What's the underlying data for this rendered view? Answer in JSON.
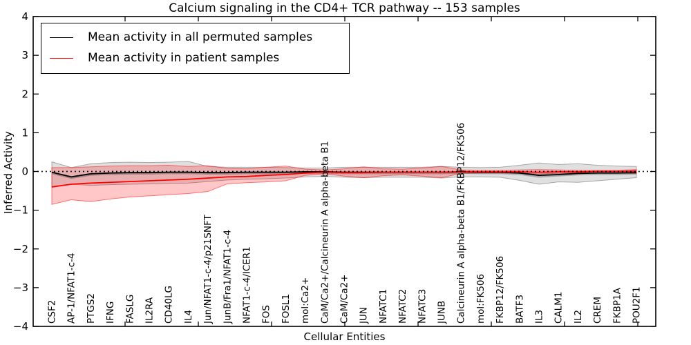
{
  "figure": {
    "title": "Calcium signaling in the CD4+ TCR pathway -- 153 samples",
    "xlabel": "Cellular Entities",
    "ylabel": "Inferred Activity"
  },
  "legend": {
    "items": [
      {
        "label": "Mean activity in all permuted samples",
        "color": "#000000"
      },
      {
        "label": "Mean activity in patient samples",
        "color": "#ff0000"
      }
    ]
  },
  "chart_data": {
    "type": "line",
    "title": "Calcium signaling in the CD4+ TCR pathway -- 153 samples",
    "xlabel": "Cellular Entities",
    "ylabel": "Inferred Activity",
    "ylim": [
      -4,
      4
    ],
    "ytick_labels": [
      "4",
      "3",
      "2",
      "1",
      "0",
      "−1",
      "−2",
      "−3",
      "−4"
    ],
    "ytick_values": [
      4,
      3,
      2,
      1,
      0,
      -1,
      -2,
      -3,
      -4
    ],
    "grid": false,
    "legend_position": "upper left",
    "zero_reference_line": {
      "y": 0,
      "style": "dotted",
      "color": "#000000"
    },
    "categories": [
      "CSF2",
      "AP-1/NFAT1-c-4",
      "PTGS2",
      "IFNG",
      "FASLG",
      "IL2RA",
      "CD40LG",
      "IL4",
      "Jun/NFAT1-c-4/p21SNFT",
      "JunB/Fra1/NFAT1-c-4",
      "NFAT1-c-4/ICER1",
      "FOS",
      "FOSL1",
      "mol:Ca2+",
      "CaM/Ca2+/Calcineurin A alpha-beta B1",
      "CaM/Ca2+",
      "JUN",
      "NFATC1",
      "NFATC2",
      "NFATC3",
      "JUNB",
      "Calcineurin A alpha-beta B1/FKBP12/FK506",
      "mol:FK506",
      "FKBP12/FK506",
      "BATF3",
      "IL3",
      "CALM1",
      "IL2",
      "CREM",
      "FKBP1A",
      "POU2F1"
    ],
    "series": [
      {
        "name": "Mean activity in all permuted samples",
        "color": "#000000",
        "values": [
          -0.02,
          -0.14,
          -0.06,
          -0.04,
          -0.03,
          -0.03,
          -0.02,
          -0.02,
          -0.03,
          -0.03,
          -0.02,
          -0.02,
          -0.02,
          -0.01,
          -0.01,
          -0.02,
          -0.02,
          -0.02,
          -0.02,
          -0.02,
          -0.02,
          -0.01,
          -0.02,
          -0.02,
          -0.04,
          -0.1,
          -0.08,
          -0.05,
          -0.04,
          -0.04,
          -0.03
        ]
      },
      {
        "name": "Mean activity in patient samples",
        "color": "#ff0000",
        "values": [
          -0.4,
          -0.33,
          -0.3,
          -0.28,
          -0.26,
          -0.24,
          -0.22,
          -0.2,
          -0.17,
          -0.14,
          -0.13,
          -0.1,
          -0.08,
          -0.04,
          -0.02,
          -0.03,
          -0.03,
          -0.02,
          -0.02,
          -0.02,
          -0.02,
          -0.01,
          -0.01,
          -0.01,
          -0.01,
          -0.02,
          -0.01,
          -0.01,
          0.0,
          0.0,
          0.01
        ]
      }
    ],
    "bands": [
      {
        "name": "permuted-samples-range",
        "color": "#000000",
        "fill_opacity": 0.12,
        "edge_opacity": 0.3,
        "upper": [
          0.25,
          0.1,
          0.2,
          0.23,
          0.24,
          0.23,
          0.24,
          0.26,
          0.13,
          0.11,
          0.11,
          0.11,
          0.1,
          0.09,
          0.09,
          0.11,
          0.11,
          0.11,
          0.11,
          0.11,
          0.13,
          0.11,
          0.1,
          0.11,
          0.16,
          0.22,
          0.18,
          0.2,
          0.16,
          0.14,
          0.13
        ],
        "lower": [
          -0.4,
          -0.33,
          -0.36,
          -0.34,
          -0.33,
          -0.32,
          -0.31,
          -0.3,
          -0.26,
          -0.22,
          -0.2,
          -0.19,
          -0.17,
          -0.14,
          -0.13,
          -0.15,
          -0.16,
          -0.15,
          -0.15,
          -0.15,
          -0.17,
          -0.14,
          -0.14,
          -0.15,
          -0.23,
          -0.33,
          -0.27,
          -0.28,
          -0.24,
          -0.2,
          -0.16
        ]
      },
      {
        "name": "patient-samples-range",
        "color": "#ff0000",
        "fill_opacity": 0.22,
        "edge_opacity": 0.5,
        "upper": [
          0.1,
          0.1,
          0.12,
          0.14,
          0.15,
          0.15,
          0.16,
          0.13,
          0.15,
          0.08,
          0.07,
          0.11,
          0.14,
          0.06,
          0.04,
          0.07,
          0.12,
          0.07,
          0.06,
          0.09,
          0.13,
          0.04,
          0.03,
          0.03,
          0.04,
          0.05,
          0.04,
          0.03,
          0.03,
          0.03,
          0.05
        ],
        "lower": [
          -0.85,
          -0.73,
          -0.78,
          -0.71,
          -0.66,
          -0.63,
          -0.6,
          -0.57,
          -0.52,
          -0.32,
          -0.29,
          -0.27,
          -0.24,
          -0.1,
          -0.06,
          -0.12,
          -0.16,
          -0.11,
          -0.09,
          -0.12,
          -0.16,
          -0.05,
          -0.04,
          -0.04,
          -0.05,
          -0.06,
          -0.05,
          -0.04,
          -0.04,
          -0.04,
          -0.05
        ]
      },
      {
        "name": "permuted-samples-inner-band",
        "color": "#000000",
        "fill_opacity": 0.25,
        "edge_opacity": 0,
        "upper": [
          0.0,
          -0.12,
          -0.04,
          -0.02,
          -0.01,
          -0.01,
          0.0,
          0.0,
          -0.01,
          -0.01,
          0.0,
          0.0,
          0.0,
          0.01,
          0.01,
          0.0,
          0.0,
          0.0,
          0.0,
          0.0,
          0.0,
          0.01,
          0.0,
          0.0,
          -0.02,
          -0.07,
          -0.05,
          -0.03,
          -0.02,
          -0.02,
          -0.01
        ],
        "lower": [
          -0.07,
          -0.19,
          -0.11,
          -0.09,
          -0.08,
          -0.08,
          -0.07,
          -0.07,
          -0.08,
          -0.08,
          -0.07,
          -0.07,
          -0.07,
          -0.06,
          -0.06,
          -0.07,
          -0.07,
          -0.07,
          -0.07,
          -0.07,
          -0.07,
          -0.06,
          -0.07,
          -0.07,
          -0.09,
          -0.16,
          -0.13,
          -0.1,
          -0.09,
          -0.09,
          -0.08
        ]
      }
    ]
  }
}
